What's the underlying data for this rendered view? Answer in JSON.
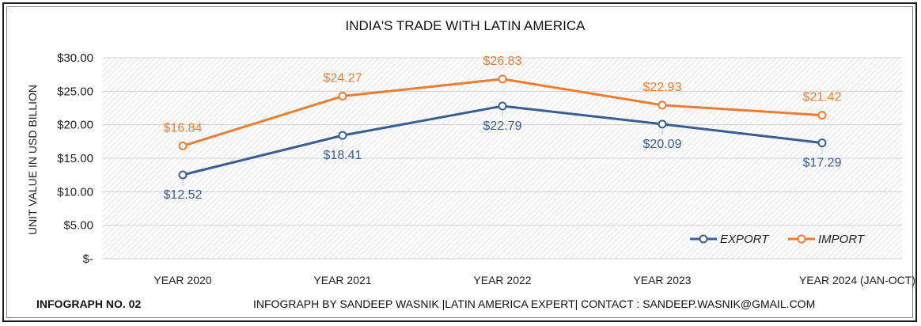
{
  "chart_data": {
    "type": "line",
    "title": "INDIA'S TRADE WITH LATIN AMERICA",
    "ylabel": "UNIT VALUE IN USD BILLION",
    "xlabel": "",
    "categories": [
      "YEAR 2020",
      "YEAR 2021",
      "YEAR 2022",
      "YEAR 2023",
      "YEAR 2024 (JAN-OCT)"
    ],
    "ylim": [
      0,
      30
    ],
    "yticks": [
      0,
      5,
      10,
      15,
      20,
      25,
      30
    ],
    "ytick_labels": [
      "$-",
      "$5.00",
      "$10.00",
      "$15.00",
      "$20.00",
      "$25.00",
      "$30.00"
    ],
    "grid": true,
    "legend": "bottom-right",
    "series": [
      {
        "name": "EXPORT",
        "color": "#3a5d94",
        "values": [
          12.52,
          18.41,
          22.79,
          20.09,
          17.29
        ],
        "labels": [
          "$12.52",
          "$18.41",
          "$22.79",
          "$20.09",
          "$17.29"
        ]
      },
      {
        "name": "IMPORT",
        "color": "#ed7d31",
        "values": [
          16.84,
          24.27,
          26.83,
          22.93,
          21.42
        ],
        "labels": [
          "$16.84",
          "$24.27",
          "$26.83",
          "$22.93",
          "$21.42"
        ]
      }
    ]
  },
  "footer": {
    "left": "INFOGRAPH NO. 02",
    "right": "INFOGRAPH BY SANDEEP WASNIK |LATIN AMERICA EXPERT| CONTACT : SANDEEP.WASNIK@GMAIL.COM"
  }
}
